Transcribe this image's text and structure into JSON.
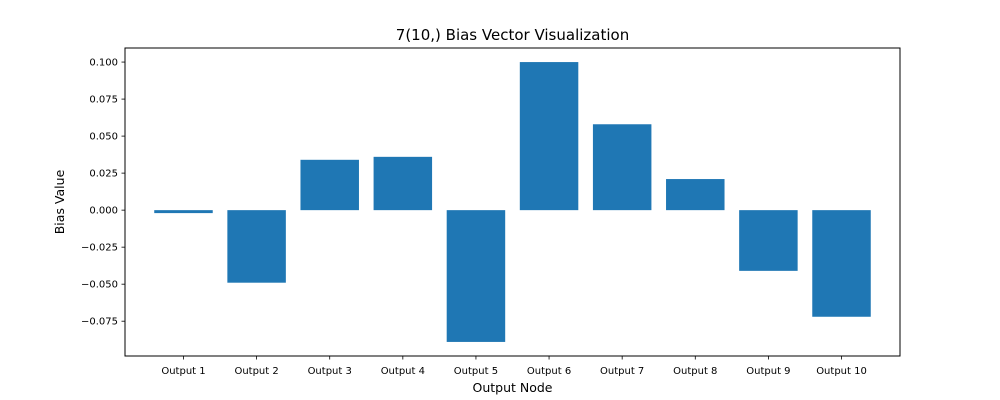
{
  "chart_data": {
    "type": "bar",
    "title": "7(10,) Bias Vector Visualization",
    "xlabel": "Output Node",
    "ylabel": "Bias Value",
    "categories": [
      "Output 1",
      "Output 2",
      "Output 3",
      "Output 4",
      "Output 5",
      "Output 6",
      "Output 7",
      "Output 8",
      "Output 9",
      "Output 10"
    ],
    "values": [
      -0.002,
      -0.049,
      0.034,
      0.036,
      -0.089,
      0.1,
      0.058,
      0.021,
      -0.041,
      -0.072
    ],
    "ylim": [
      -0.0985,
      0.1095
    ],
    "yticks": [
      -0.075,
      -0.05,
      -0.025,
      0.0,
      0.025,
      0.05,
      0.075,
      0.1
    ],
    "ytick_labels": [
      "−0.075",
      "−0.050",
      "−0.025",
      "0.000",
      "0.025",
      "0.050",
      "0.075",
      "0.100"
    ],
    "grid": false,
    "bar_color": "#1f77b4"
  }
}
